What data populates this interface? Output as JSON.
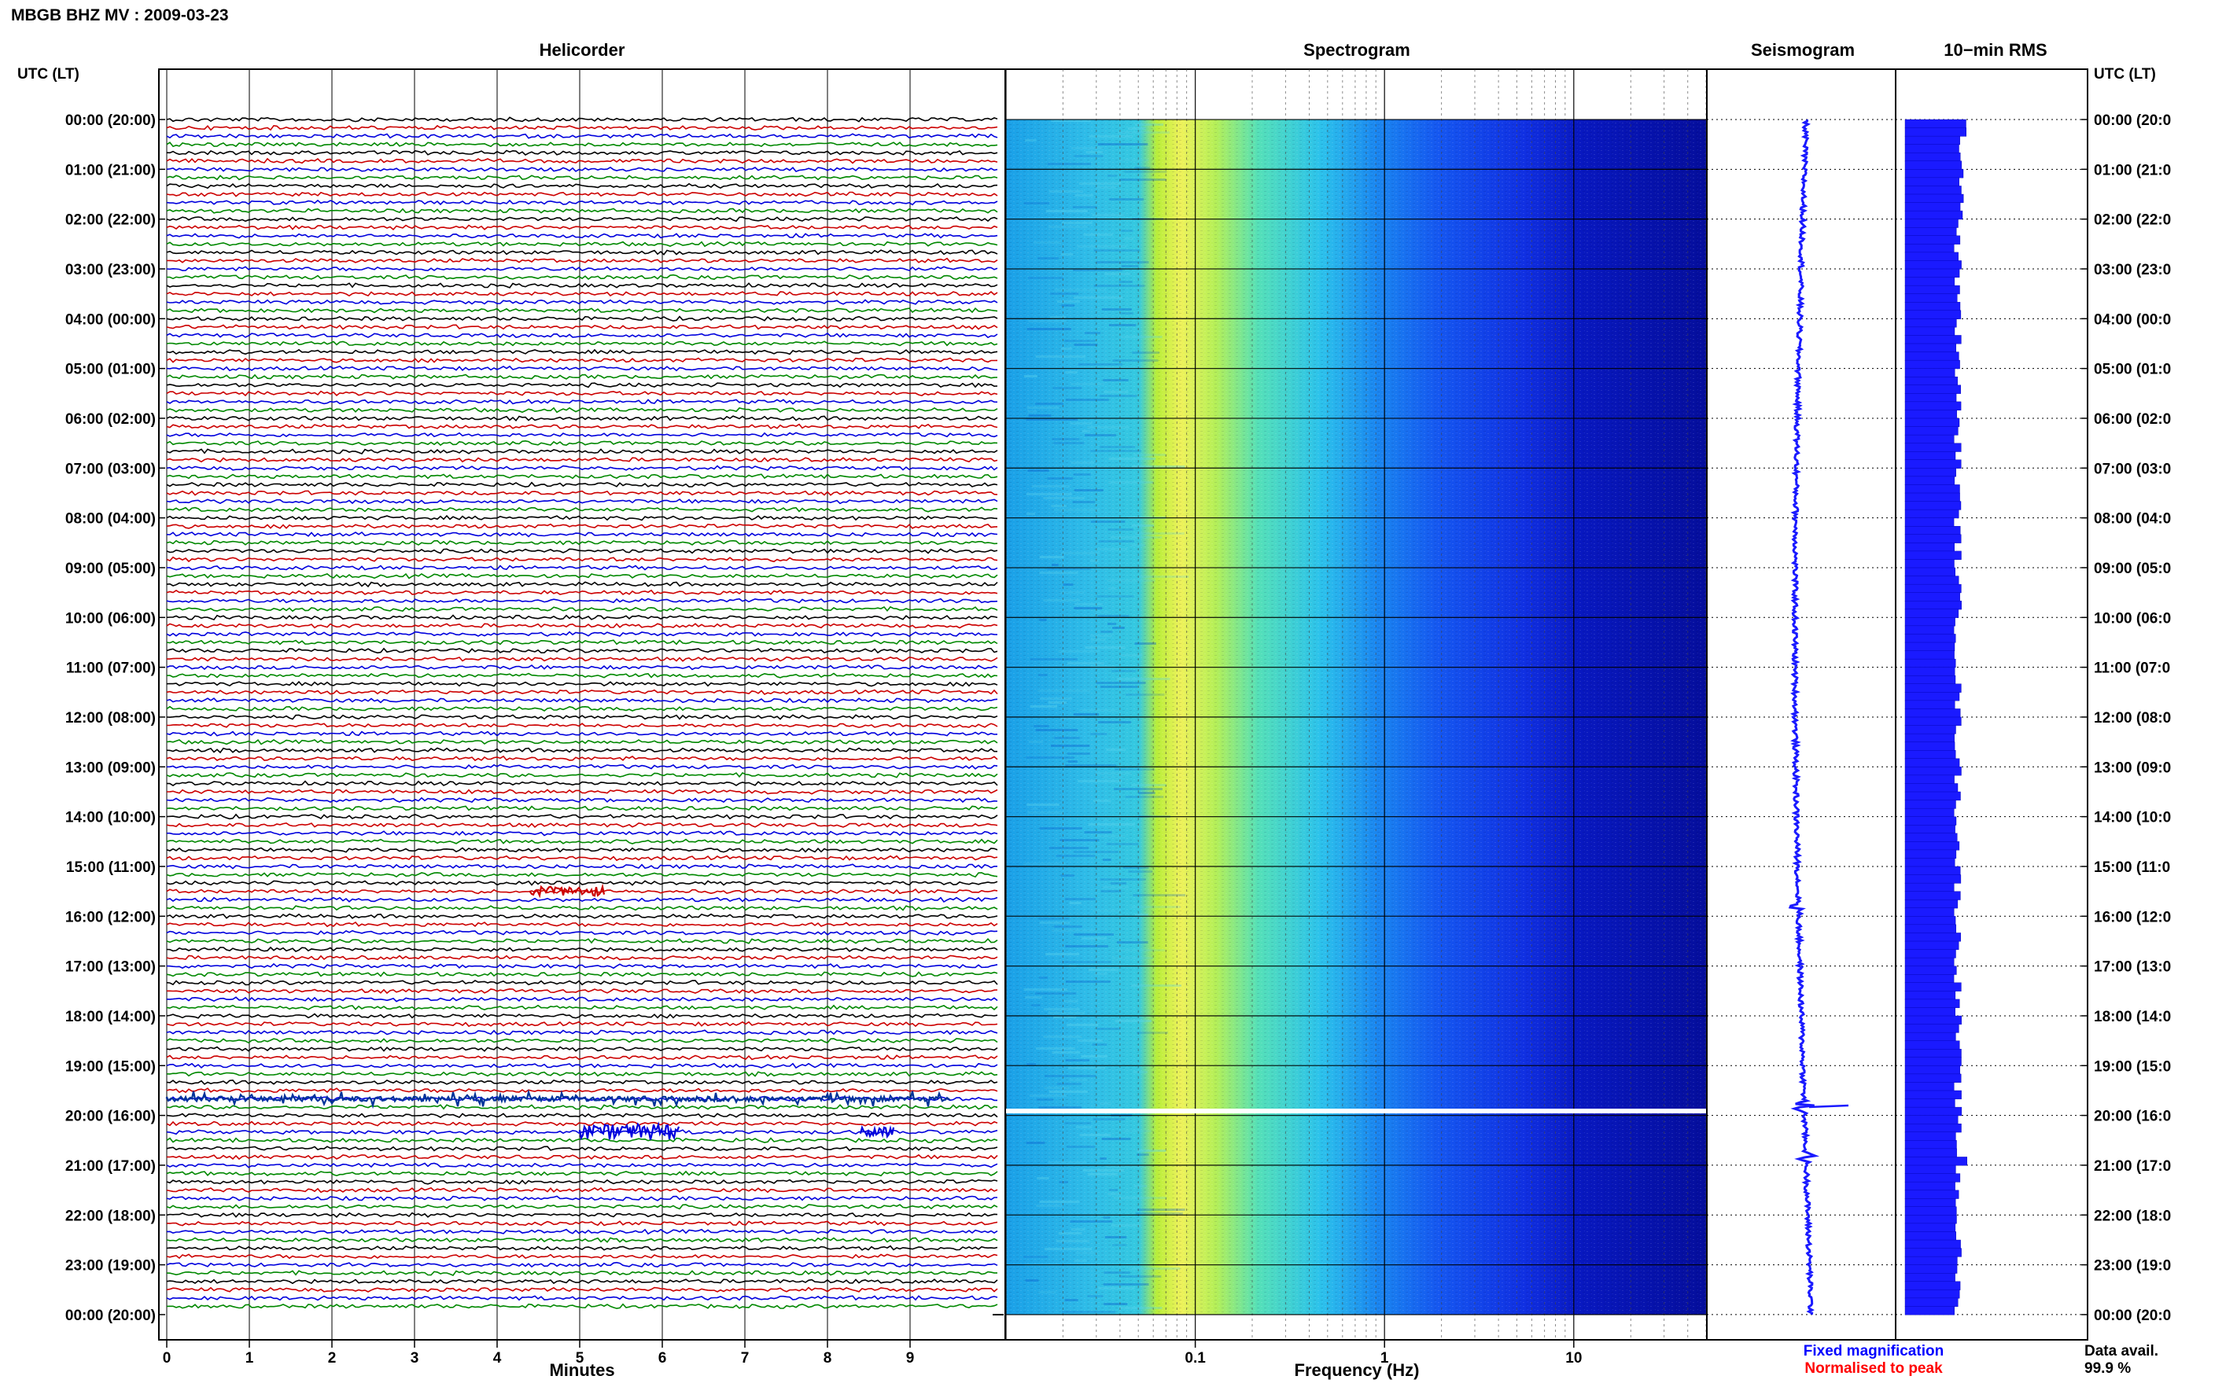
{
  "header": {
    "station_title": "MBGB BHZ MV : 2009-03-23"
  },
  "panels": {
    "helicorder": "Helicorder",
    "spectrogram": "Spectrogram",
    "seismogram": "Seismogram",
    "rms": "10−min RMS"
  },
  "left_axis_title": "UTC (LT)",
  "right_axis_title": "UTC (LT)",
  "time_labels": [
    "00:00 (20:00)",
    "01:00 (21:00)",
    "02:00 (22:00)",
    "03:00 (23:00)",
    "04:00 (00:00)",
    "05:00 (01:00)",
    "06:00 (02:00)",
    "07:00 (03:00)",
    "08:00 (04:00)",
    "09:00 (05:00)",
    "10:00 (06:00)",
    "11:00 (07:00)",
    "12:00 (08:00)",
    "13:00 (09:00)",
    "14:00 (10:00)",
    "15:00 (11:00)",
    "16:00 (12:00)",
    "17:00 (13:00)",
    "18:00 (14:00)",
    "19:00 (15:00)",
    "20:00 (16:00)",
    "21:00 (17:00)",
    "22:00 (18:00)",
    "23:00 (19:00)",
    "00:00 (20:00)"
  ],
  "right_time_labels": [
    "00:00 (20:0",
    "01:00 (21:0",
    "02:00 (22:0",
    "03:00 (23:0",
    "04:00 (00:0",
    "05:00 (01:0",
    "06:00 (02:0",
    "07:00 (03:0",
    "08:00 (04:0",
    "09:00 (05:0",
    "10:00 (06:0",
    "11:00 (07:0",
    "12:00 (08:0",
    "13:00 (09:0",
    "14:00 (10:0",
    "15:00 (11:0",
    "16:00 (12:0",
    "17:00 (13:0",
    "18:00 (14:0",
    "19:00 (15:0",
    "20:00 (16:0",
    "21:00 (17:0",
    "22:00 (18:0",
    "23:00 (19:0",
    "00:00 (20:0"
  ],
  "footer": {
    "fixed_magnification": "Fixed magnification",
    "normalised_to_peak": "Normalised to peak",
    "data_avail_label": "Data avail.",
    "data_avail_value": "99.9 %"
  },
  "colors": {
    "fixed_magnification": "#0000ff",
    "normalised_to_peak": "#ff0000",
    "trace_cycle": [
      "#000000",
      "#cc0000",
      "#0000dd",
      "#008800"
    ],
    "rms_bar": "#1a1aff",
    "seismogram": "#1a1aff"
  },
  "chart_data": [
    {
      "type": "line",
      "name": "helicorder",
      "xlabel": "Minutes",
      "x_ticks": [
        "0",
        "1",
        "2",
        "3",
        "4",
        "5",
        "6",
        "7",
        "8",
        "9"
      ],
      "xlim": [
        0,
        10
      ],
      "rows_per_hour": 6,
      "hours": 24,
      "events": [
        {
          "time_utc": "15:30",
          "minute_start": 4.4,
          "minute_end": 5.3,
          "amplitude": "medium"
        },
        {
          "time_utc": "19:40",
          "minute_start": 0.0,
          "minute_end": 9.5,
          "amplitude": "large"
        },
        {
          "time_utc": "20:20",
          "minute_start": 5.0,
          "minute_end": 6.2,
          "amplitude": "large"
        },
        {
          "time_utc": "20:20",
          "minute_start": 8.4,
          "minute_end": 8.8,
          "amplitude": "medium"
        }
      ]
    },
    {
      "type": "heatmap",
      "name": "spectrogram",
      "xlabel": "Frequency (Hz)",
      "x_scale": "log",
      "xlim": [
        0.01,
        50
      ],
      "x_tick_labels": [
        "0.1",
        "1",
        "10"
      ],
      "colormap": "jet"
    },
    {
      "type": "line",
      "name": "seismogram",
      "orientation": "vertical",
      "events_utc": [
        "15:50",
        "19:50",
        "20:50"
      ]
    },
    {
      "type": "bar",
      "name": "10-min RMS",
      "orientation": "horizontal",
      "bins": 144
    }
  ]
}
